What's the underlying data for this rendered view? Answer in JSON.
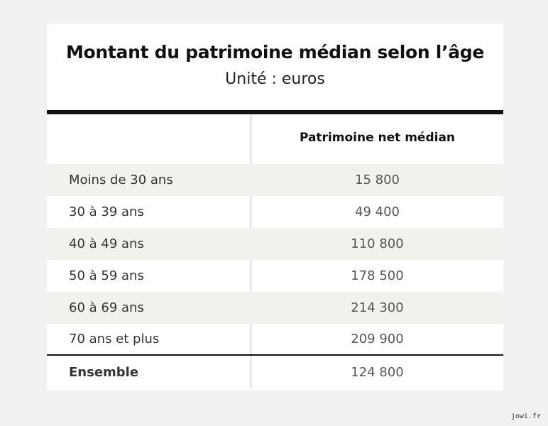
{
  "chart_data": {
    "type": "table",
    "title": "Montant du patrimoine médian selon l’âge",
    "subtitle": "Unité : euros",
    "column_header": "Patrimoine net médian",
    "rows": [
      {
        "label": "Moins de 30 ans",
        "value": "15 800"
      },
      {
        "label": "30 à 39 ans",
        "value": "49 400"
      },
      {
        "label": "40 à 49 ans",
        "value": "110 800"
      },
      {
        "label": "50 à 59 ans",
        "value": "178 500"
      },
      {
        "label": "60 à 69 ans",
        "value": "214 300"
      },
      {
        "label": "70 ans et plus",
        "value": "209 900"
      }
    ],
    "total": {
      "label": "Ensemble",
      "value": "124 800"
    }
  },
  "watermark": "jowi.fr"
}
